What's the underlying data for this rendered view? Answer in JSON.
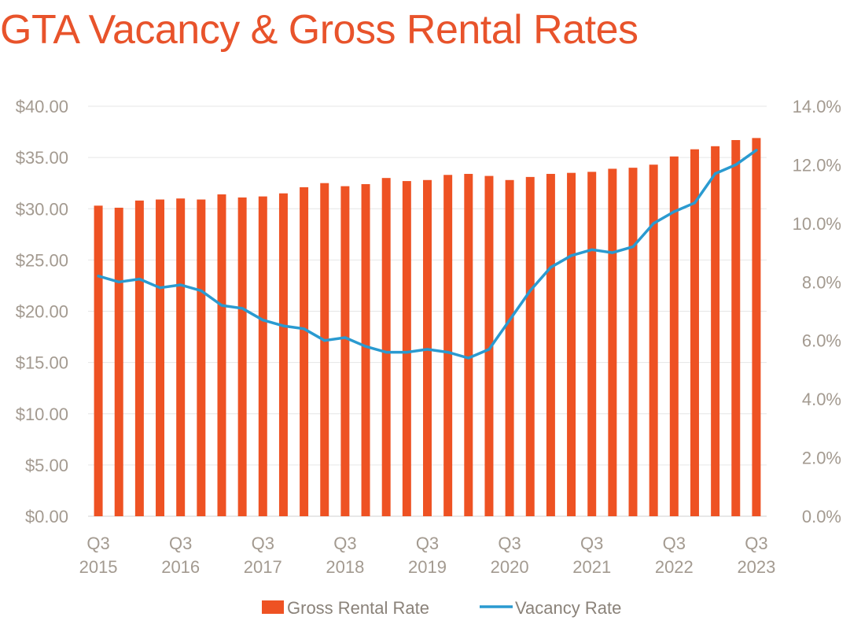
{
  "colors": {
    "title": "#e8532b",
    "bar": "#ee5223",
    "line": "#2a9ad0",
    "grid": "#e6e6e6",
    "tick_text": "#a39a90"
  },
  "chart_data": {
    "type": "bar",
    "title": "GTA Vacancy & Gross Rental Rates",
    "categories": [
      "Q3 2015",
      "Q4 2015",
      "Q1 2016",
      "Q2 2016",
      "Q3 2016",
      "Q4 2016",
      "Q1 2017",
      "Q2 2017",
      "Q3 2017",
      "Q4 2017",
      "Q1 2018",
      "Q2 2018",
      "Q3 2018",
      "Q4 2018",
      "Q1 2019",
      "Q2 2019",
      "Q3 2019",
      "Q4 2019",
      "Q1 2020",
      "Q2 2020",
      "Q3 2020",
      "Q4 2020",
      "Q1 2021",
      "Q2 2021",
      "Q3 2021",
      "Q4 2021",
      "Q1 2022",
      "Q2 2022",
      "Q3 2022",
      "Q4 2022",
      "Q1 2023",
      "Q2 2023",
      "Q3 2023"
    ],
    "x_tick_labels": [
      {
        "index": 0,
        "line1": "Q3",
        "line2": "2015"
      },
      {
        "index": 4,
        "line1": "Q3",
        "line2": "2016"
      },
      {
        "index": 8,
        "line1": "Q3",
        "line2": "2017"
      },
      {
        "index": 12,
        "line1": "Q3",
        "line2": "2018"
      },
      {
        "index": 16,
        "line1": "Q3",
        "line2": "2019"
      },
      {
        "index": 20,
        "line1": "Q3",
        "line2": "2020"
      },
      {
        "index": 24,
        "line1": "Q3",
        "line2": "2021"
      },
      {
        "index": 28,
        "line1": "Q3",
        "line2": "2022"
      },
      {
        "index": 32,
        "line1": "Q3",
        "line2": "2023"
      }
    ],
    "series": [
      {
        "name": "Gross Rental Rate",
        "type": "bar",
        "axis": "left",
        "values": [
          30.3,
          30.1,
          30.8,
          30.9,
          31.0,
          30.9,
          31.4,
          31.1,
          31.2,
          31.5,
          32.1,
          32.5,
          32.2,
          32.4,
          33.0,
          32.7,
          32.8,
          33.3,
          33.4,
          33.2,
          32.8,
          33.1,
          33.4,
          33.5,
          33.6,
          33.9,
          34.0,
          34.3,
          35.1,
          35.8,
          36.1,
          36.7,
          36.9
        ]
      },
      {
        "name": "Vacancy Rate",
        "type": "line",
        "axis": "right",
        "values": [
          8.2,
          8.0,
          8.1,
          7.8,
          7.9,
          7.7,
          7.2,
          7.1,
          6.7,
          6.5,
          6.4,
          6.0,
          6.1,
          5.8,
          5.6,
          5.6,
          5.7,
          5.6,
          5.4,
          5.7,
          6.7,
          7.7,
          8.5,
          8.9,
          9.1,
          9.0,
          9.2,
          10.0,
          10.4,
          10.7,
          11.7,
          12.0,
          12.5
        ]
      }
    ],
    "y_left": {
      "min": 0,
      "max": 40,
      "step": 5,
      "tick_labels": [
        "$0.00",
        "$5.00",
        "$10.00",
        "$15.00",
        "$20.00",
        "$25.00",
        "$30.00",
        "$35.00",
        "$40.00"
      ]
    },
    "y_right": {
      "min": 0,
      "max": 14,
      "step": 2,
      "tick_labels": [
        "0.0%",
        "2.0%",
        "4.0%",
        "6.0%",
        "8.0%",
        "10.0%",
        "12.0%",
        "14.0%"
      ]
    },
    "grid": true,
    "legend": {
      "position": "bottom-center",
      "entries": [
        {
          "label": "Gross Rental Rate",
          "marker": "bar"
        },
        {
          "label": "Vacancy Rate",
          "marker": "line"
        }
      ]
    }
  }
}
